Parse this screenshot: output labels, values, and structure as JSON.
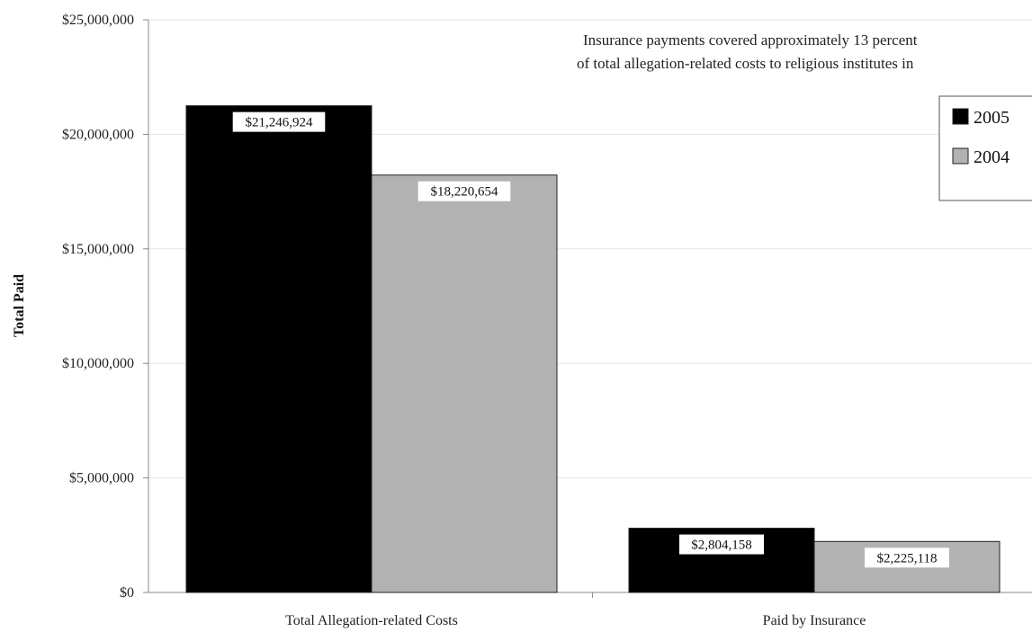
{
  "chart_data": {
    "type": "bar",
    "categories": [
      "Total Allegation-related Costs",
      "Paid by Insurance"
    ],
    "series": [
      {
        "name": "2005",
        "color": "#000000",
        "values": [
          21246924,
          2804158
        ],
        "labels": [
          "$21,246,924",
          "$2,804,158"
        ]
      },
      {
        "name": "2004",
        "color": "#b2b2b2",
        "values": [
          18220654,
          2225118
        ],
        "labels": [
          "$18,220,654",
          "$2,225,118"
        ]
      }
    ],
    "ylabel": "Total Paid",
    "xlabel": "",
    "ylim": [
      0,
      25000000
    ],
    "yticks": [
      0,
      5000000,
      10000000,
      15000000,
      20000000,
      25000000
    ],
    "ytick_labels": [
      "$0",
      "$5,000,000",
      "$10,000,000",
      "$15,000,000",
      "$20,000,000",
      "$25,000,000"
    ],
    "annotation": {
      "line1": "Insurance payments covered approximately 13 percent",
      "line2": "of total allegation-related costs to religious institutes in"
    },
    "grid": true,
    "legend_position": "top-right"
  }
}
